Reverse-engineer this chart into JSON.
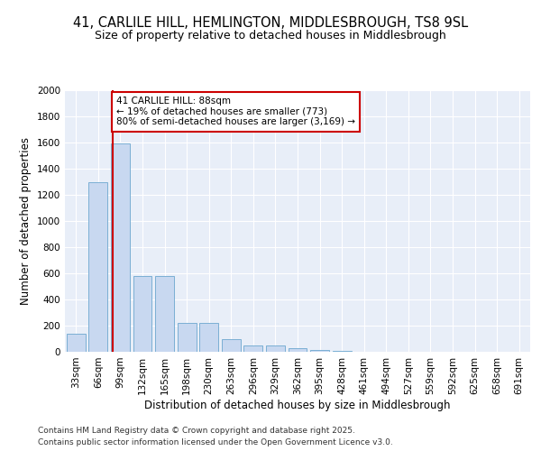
{
  "title1": "41, CARLILE HILL, HEMLINGTON, MIDDLESBROUGH, TS8 9SL",
  "title2": "Size of property relative to detached houses in Middlesbrough",
  "xlabel": "Distribution of detached houses by size in Middlesbrough",
  "ylabel": "Number of detached properties",
  "categories": [
    "33sqm",
    "66sqm",
    "99sqm",
    "132sqm",
    "165sqm",
    "198sqm",
    "230sqm",
    "263sqm",
    "296sqm",
    "329sqm",
    "362sqm",
    "395sqm",
    "428sqm",
    "461sqm",
    "494sqm",
    "527sqm",
    "559sqm",
    "592sqm",
    "625sqm",
    "658sqm",
    "691sqm"
  ],
  "values": [
    140,
    1300,
    1590,
    580,
    580,
    220,
    220,
    100,
    50,
    50,
    25,
    15,
    5,
    3,
    2,
    1,
    1,
    0,
    0,
    0,
    0
  ],
  "bar_color": "#c8d8f0",
  "bar_edge_color": "#7bafd4",
  "plot_bg_color": "#e8eef8",
  "fig_bg_color": "#ffffff",
  "grid_color": "#ffffff",
  "annotation_text": "41 CARLILE HILL: 88sqm\n← 19% of detached houses are smaller (773)\n80% of semi-detached houses are larger (3,169) →",
  "vline_x": 1.67,
  "vline_color": "#cc0000",
  "annotation_box_color": "#cc0000",
  "ylim": [
    0,
    2000
  ],
  "yticks": [
    0,
    200,
    400,
    600,
    800,
    1000,
    1200,
    1400,
    1600,
    1800,
    2000
  ],
  "footer1": "Contains HM Land Registry data © Crown copyright and database right 2025.",
  "footer2": "Contains public sector information licensed under the Open Government Licence v3.0.",
  "title_fontsize": 10.5,
  "subtitle_fontsize": 9,
  "axis_label_fontsize": 8.5,
  "tick_fontsize": 7.5,
  "footer_fontsize": 6.5,
  "bar_width": 0.85
}
